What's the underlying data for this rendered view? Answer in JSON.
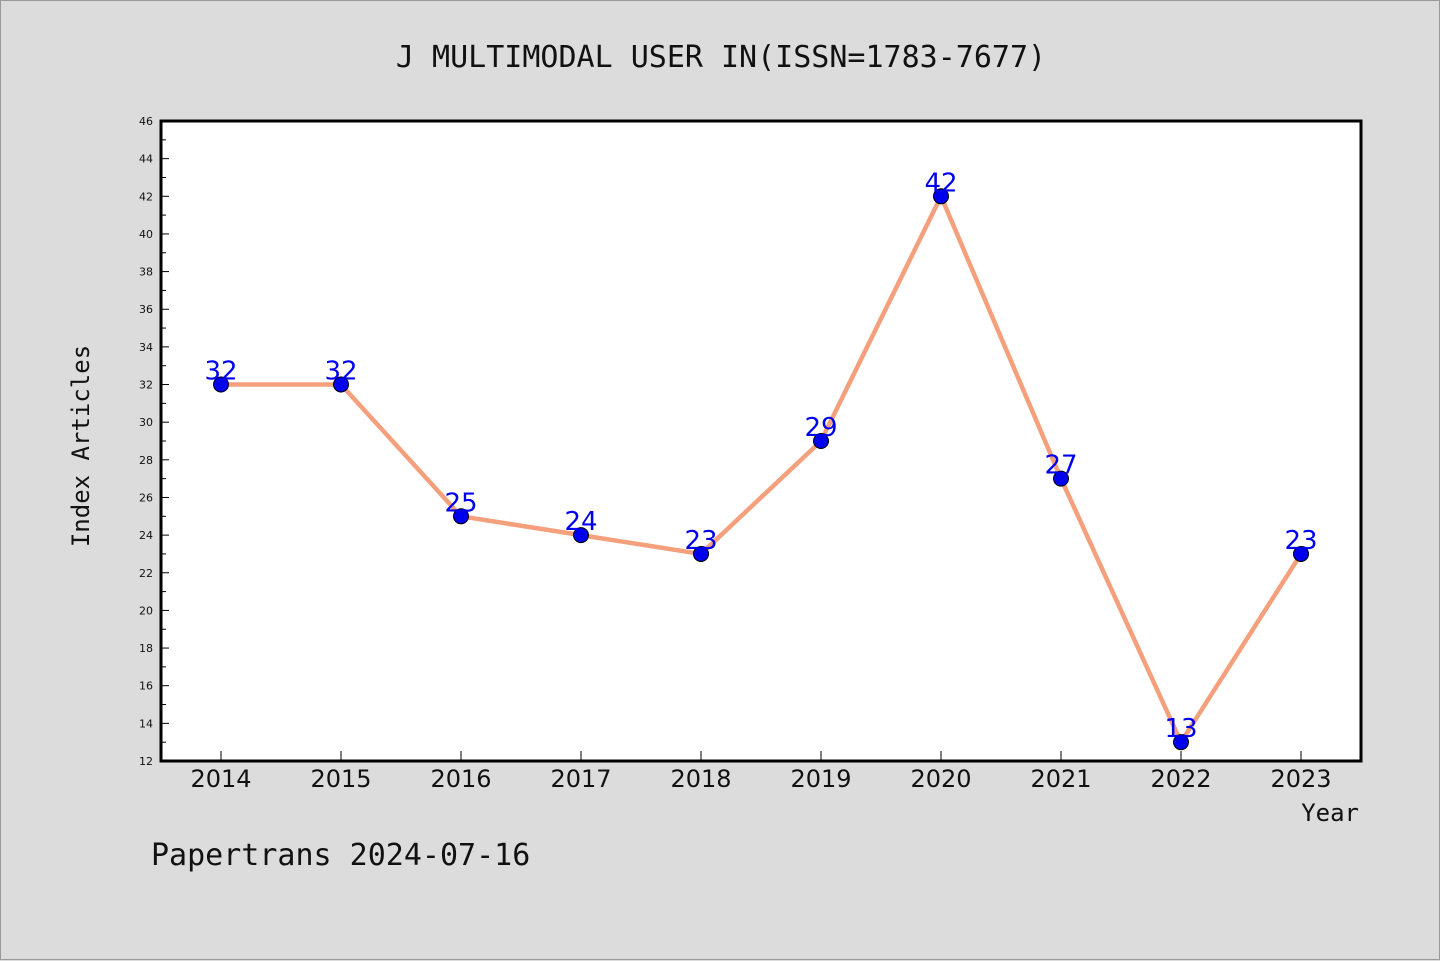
{
  "chart_data": {
    "type": "line",
    "title": "J MULTIMODAL USER IN(ISSN=1783-7677)",
    "xlabel": "Year",
    "ylabel": "Index Articles",
    "categories": [
      "2014",
      "2015",
      "2016",
      "2017",
      "2018",
      "2019",
      "2020",
      "2021",
      "2022",
      "2023"
    ],
    "series": [
      {
        "values": [
          32,
          32,
          25,
          24,
          23,
          29,
          42,
          27,
          13,
          23
        ]
      }
    ],
    "ylim": [
      12,
      46
    ],
    "yticks": [
      12,
      14,
      16,
      18,
      20,
      22,
      24,
      26,
      28,
      30,
      32,
      34,
      36,
      38,
      40,
      42,
      44,
      46
    ],
    "grid": false,
    "legend": "none",
    "data_labels": true,
    "colors": {
      "line": "#f4a07c",
      "marker": "#0000ee",
      "data_label": "#0000ee",
      "plot_background": "#ffffff",
      "page_background": "#dcdcdc"
    }
  },
  "footer": "Papertrans 2024-07-16"
}
